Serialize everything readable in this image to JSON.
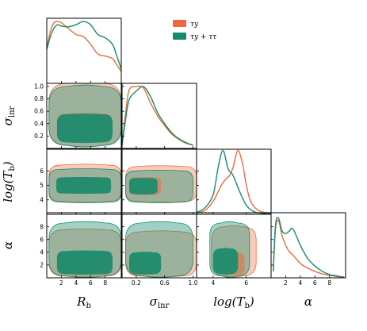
{
  "chart_data": {
    "type": "corner",
    "colors": {
      "tau_y": "#EE6A3C",
      "tau_y_tau_tau": "#138C6E"
    },
    "legend": {
      "placement": "top-right",
      "entries": [
        {
          "key": "tau_y",
          "label": "τy"
        },
        {
          "key": "tau_y_tau_tau",
          "label": "τy + ττ"
        }
      ]
    },
    "parameters": [
      {
        "key": "Rb",
        "label": "R",
        "sub": "b",
        "suffix": "",
        "range": [
          0,
          10.2
        ],
        "ticks": [
          "2",
          "4",
          "6",
          "8"
        ],
        "tick_values": [
          2,
          4,
          6,
          8
        ]
      },
      {
        "key": "sigma_lnr",
        "label": "σ",
        "sub": "lnr",
        "suffix": "",
        "range": [
          0,
          1.05
        ],
        "ticks": [
          "0.2",
          "0.6",
          "1.0"
        ],
        "tick_values": [
          0.2,
          0.6,
          1.0
        ],
        "yticks": [
          "0.2",
          "0.4",
          "0.6",
          "0.8",
          "1.0"
        ],
        "ytick_values": [
          0.2,
          0.4,
          0.6,
          0.8,
          1.0
        ]
      },
      {
        "key": "logTb",
        "label": "log(T",
        "sub": "b",
        "suffix": ")",
        "range": [
          3.0,
          7.5
        ],
        "ticks": [
          "4",
          "6"
        ],
        "tick_values": [
          4,
          6
        ],
        "yticks": [
          "4",
          "5",
          "6"
        ],
        "ytick_values": [
          4,
          5,
          6
        ]
      },
      {
        "key": "alpha",
        "label": "α",
        "sub": "",
        "suffix": "",
        "range": [
          0,
          10.2
        ],
        "ticks": [
          "2",
          "4",
          "6",
          "8"
        ],
        "tick_values": [
          2,
          4,
          6,
          8
        ],
        "yticks": [
          "2",
          "4",
          "6",
          "8"
        ],
        "ytick_values": [
          2,
          4,
          6,
          8
        ]
      }
    ],
    "marginals": [
      {
        "param": "Rb",
        "tau_y": {
          "x": [
            0,
            0.5,
            1,
            1.5,
            2,
            3,
            4,
            5,
            6,
            7,
            8,
            9,
            9.5,
            10.2
          ],
          "y": [
            0.55,
            0.8,
            0.93,
            0.95,
            0.93,
            0.84,
            0.75,
            0.72,
            0.6,
            0.45,
            0.42,
            0.38,
            0.3,
            0.18
          ]
        },
        "tau_y_tau_tau": {
          "x": [
            0,
            0.5,
            1,
            1.5,
            2,
            3,
            4,
            5,
            6,
            7,
            8,
            9,
            9.5,
            10.2
          ],
          "y": [
            0.52,
            0.72,
            0.85,
            0.9,
            0.88,
            0.87,
            0.9,
            0.95,
            0.9,
            0.75,
            0.7,
            0.6,
            0.45,
            0.22
          ]
        }
      },
      {
        "param": "sigma_lnr",
        "tau_y": {
          "x": [
            0,
            0.05,
            0.1,
            0.2,
            0.3,
            0.4,
            0.5,
            0.6,
            0.7,
            0.8,
            0.9,
            1.0
          ],
          "y": [
            0.05,
            0.55,
            0.9,
            0.95,
            0.93,
            0.7,
            0.5,
            0.35,
            0.22,
            0.14,
            0.08,
            0.05
          ]
        },
        "tau_y_tau_tau": {
          "x": [
            0,
            0.05,
            0.1,
            0.2,
            0.3,
            0.4,
            0.5,
            0.6,
            0.7,
            0.8,
            0.9,
            1.0
          ],
          "y": [
            0.05,
            0.45,
            0.75,
            0.88,
            0.95,
            0.8,
            0.55,
            0.38,
            0.24,
            0.15,
            0.09,
            0.05
          ]
        }
      },
      {
        "param": "logTb",
        "tau_y": {
          "x": [
            3.0,
            3.5,
            4.0,
            4.5,
            4.8,
            5.0,
            5.2,
            5.5,
            5.8,
            6.0,
            6.3,
            6.8,
            7.5
          ],
          "y": [
            0.02,
            0.06,
            0.2,
            0.45,
            0.55,
            0.6,
            0.72,
            0.98,
            0.75,
            0.45,
            0.18,
            0.05,
            0.02
          ]
        },
        "tau_y_tau_tau": {
          "x": [
            3.0,
            3.5,
            4.0,
            4.3,
            4.6,
            4.9,
            5.2,
            5.6,
            6.0,
            6.4,
            6.8,
            7.5
          ],
          "y": [
            0.03,
            0.1,
            0.3,
            0.72,
            0.98,
            0.7,
            0.6,
            0.35,
            0.14,
            0.05,
            0.02,
            0.01
          ]
        }
      },
      {
        "param": "alpha",
        "tau_y": {
          "x": [
            0.3,
            0.6,
            1,
            1.5,
            2,
            2.5,
            3,
            4,
            5,
            6,
            7,
            8,
            9,
            10
          ],
          "y": [
            0.1,
            0.75,
            0.88,
            0.65,
            0.5,
            0.4,
            0.35,
            0.22,
            0.15,
            0.1,
            0.06,
            0.04,
            0.02,
            0.01
          ]
        },
        "tau_y_tau_tau": {
          "x": [
            0.3,
            0.6,
            1,
            1.5,
            2,
            2.5,
            3,
            4,
            5,
            6,
            7,
            8,
            9,
            10
          ],
          "y": [
            0.1,
            0.8,
            0.92,
            0.72,
            0.68,
            0.72,
            0.75,
            0.5,
            0.3,
            0.18,
            0.1,
            0.05,
            0.03,
            0.01
          ]
        }
      }
    ],
    "contours": [
      {
        "x": "Rb",
        "y": "sigma_lnr",
        "tau_y": {
          "outer": {
            "xlim": [
              0.3,
              10.2
            ],
            "ylim": [
              0.05,
              1.05
            ]
          },
          "inner": {
            "xlim": [
              1.4,
              9.0
            ],
            "ylim": [
              0.1,
              0.56
            ]
          }
        },
        "tau_y_tau_tau": {
          "outer": {
            "xlim": [
              0.3,
              10.2
            ],
            "ylim": [
              0.05,
              1.0
            ]
          },
          "inner": {
            "xlim": [
              1.4,
              9.0
            ],
            "ylim": [
              0.1,
              0.55
            ]
          }
        }
      },
      {
        "x": "Rb",
        "y": "logTb",
        "tau_y": {
          "outer": {
            "xlim": [
              0.3,
              10.2
            ],
            "ylim": [
              3.9,
              6.4
            ]
          },
          "inner": {
            "xlim": [
              1.3,
              8.8
            ],
            "ylim": [
              4.45,
              5.55
            ]
          }
        },
        "tau_y_tau_tau": {
          "outer": {
            "xlim": [
              0.3,
              10.2
            ],
            "ylim": [
              3.85,
              6.1
            ]
          },
          "inner": {
            "xlim": [
              1.3,
              8.8
            ],
            "ylim": [
              4.45,
              5.55
            ]
          }
        }
      },
      {
        "x": "sigma_lnr",
        "y": "logTb",
        "tau_y": {
          "outer": {
            "xlim": [
              0.05,
              1.05
            ],
            "ylim": [
              3.9,
              6.3
            ]
          },
          "inner": {
            "xlim": [
              0.1,
              0.55
            ],
            "ylim": [
              4.35,
              5.55
            ]
          }
        },
        "tau_y_tau_tau": {
          "outer": {
            "xlim": [
              0.05,
              1.0
            ],
            "ylim": [
              3.85,
              6.0
            ]
          },
          "inner": {
            "xlim": [
              0.1,
              0.5
            ],
            "ylim": [
              4.4,
              5.5
            ]
          }
        }
      },
      {
        "x": "Rb",
        "y": "alpha",
        "tau_y": {
          "outer": {
            "xlim": [
              0.3,
              10.2
            ],
            "ylim": [
              0.3,
              7.5
            ]
          },
          "inner": {
            "xlim": [
              1.4,
              9.0
            ],
            "ylim": [
              0.5,
              3.8
            ]
          }
        },
        "tau_y_tau_tau": {
          "outer": {
            "xlim": [
              0.3,
              10.2
            ],
            "ylim": [
              0.3,
              8.6
            ]
          },
          "inner": {
            "xlim": [
              1.4,
              9.0
            ],
            "ylim": [
              0.6,
              4.2
            ]
          }
        }
      },
      {
        "x": "sigma_lnr",
        "y": "alpha",
        "tau_y": {
          "outer": {
            "xlim": [
              0.05,
              1.05
            ],
            "ylim": [
              0.3,
              7.2
            ]
          },
          "inner": {
            "xlim": [
              0.1,
              0.5
            ],
            "ylim": [
              0.5,
              3.6
            ]
          }
        },
        "tau_y_tau_tau": {
          "outer": {
            "xlim": [
              0.05,
              1.0
            ],
            "ylim": [
              0.3,
              8.6
            ]
          },
          "inner": {
            "xlim": [
              0.1,
              0.55
            ],
            "ylim": [
              0.6,
              4.0
            ]
          }
        }
      },
      {
        "x": "logTb",
        "y": "alpha",
        "tau_y": {
          "outer": {
            "xlim": [
              3.9,
              6.6
            ],
            "ylim": [
              0.3,
              8.0
            ]
          },
          "inner": {
            "xlim": [
              4.3,
              5.9
            ],
            "ylim": [
              0.5,
              4.0
            ]
          }
        },
        "tau_y_tau_tau": {
          "outer": {
            "xlim": [
              3.8,
              6.2
            ],
            "ylim": [
              0.3,
              8.6
            ]
          },
          "inner": {
            "xlim": [
              4.0,
              5.5
            ],
            "ylim": [
              0.6,
              4.6
            ]
          }
        }
      }
    ]
  }
}
